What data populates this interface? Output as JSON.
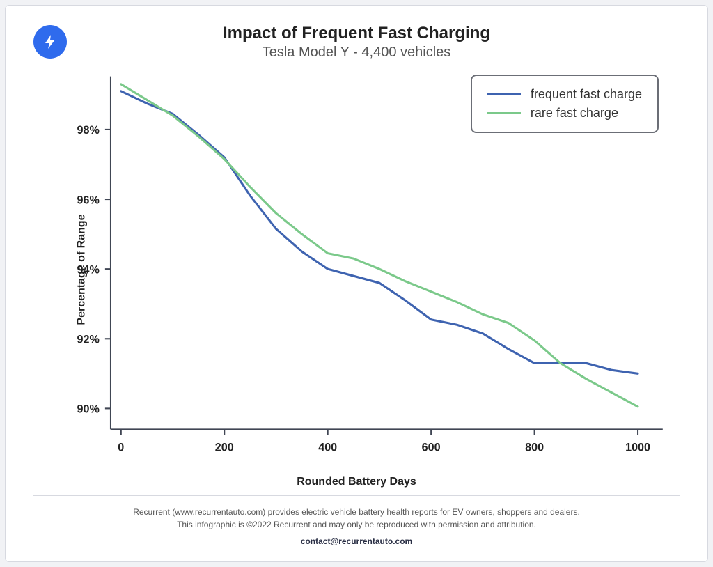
{
  "chart": {
    "type": "line",
    "title": "Impact of Frequent Fast Charging",
    "subtitle": "Tesla Model Y - 4,400 vehicles",
    "title_fontsize": 24,
    "subtitle_fontsize": 20,
    "xlabel": "Rounded Battery Days",
    "ylabel": "Percentage of Range",
    "axis_label_fontsize": 16,
    "tick_fontsize": 16,
    "xticks": [
      0,
      200,
      400,
      600,
      800,
      1000
    ],
    "yticks": [
      90,
      92,
      94,
      96,
      98
    ],
    "ytick_suffix": "%",
    "xlim": [
      -20,
      1040
    ],
    "ylim": [
      89.4,
      99.4
    ],
    "axis_color": "#404654",
    "axis_width": 2,
    "line_width": 3,
    "background_color": "#ffffff",
    "card_border_color": "#d7d9e0",
    "page_background": "#f1f2f5",
    "logo_background": "#2f6bed",
    "legend_border_color": "#6b6e76",
    "legend_fontsize": 18,
    "series": [
      {
        "name": "frequent fast charge",
        "color": "#3E63B0",
        "x": [
          0,
          50,
          100,
          150,
          200,
          250,
          300,
          350,
          400,
          450,
          500,
          550,
          600,
          650,
          700,
          750,
          800,
          850,
          900,
          950,
          1000
        ],
        "y": [
          99.1,
          98.75,
          98.45,
          97.85,
          97.2,
          96.1,
          95.15,
          94.5,
          94.0,
          93.8,
          93.6,
          93.1,
          92.55,
          92.4,
          92.15,
          91.7,
          91.3,
          91.3,
          91.3,
          91.1,
          91.0
        ]
      },
      {
        "name": "rare fast charge",
        "color": "#7BC98A",
        "x": [
          0,
          50,
          100,
          150,
          200,
          250,
          300,
          350,
          400,
          450,
          500,
          550,
          600,
          650,
          700,
          750,
          800,
          850,
          900,
          950,
          1000
        ],
        "y": [
          99.3,
          98.85,
          98.4,
          97.8,
          97.15,
          96.35,
          95.6,
          95.0,
          94.45,
          94.3,
          94.0,
          93.65,
          93.35,
          93.05,
          92.7,
          92.45,
          91.95,
          91.3,
          90.85,
          90.45,
          90.05
        ]
      }
    ]
  },
  "footer": {
    "line1": "Recurrent (www.recurrentauto.com) provides electric vehicle battery health reports for EV owners, shoppers and dealers.",
    "line2": "This infographic is ©2022 Recurrent and may only be reproduced with permission and attribution.",
    "contact": "contact@recurrentauto.com",
    "fontsize": 12
  }
}
